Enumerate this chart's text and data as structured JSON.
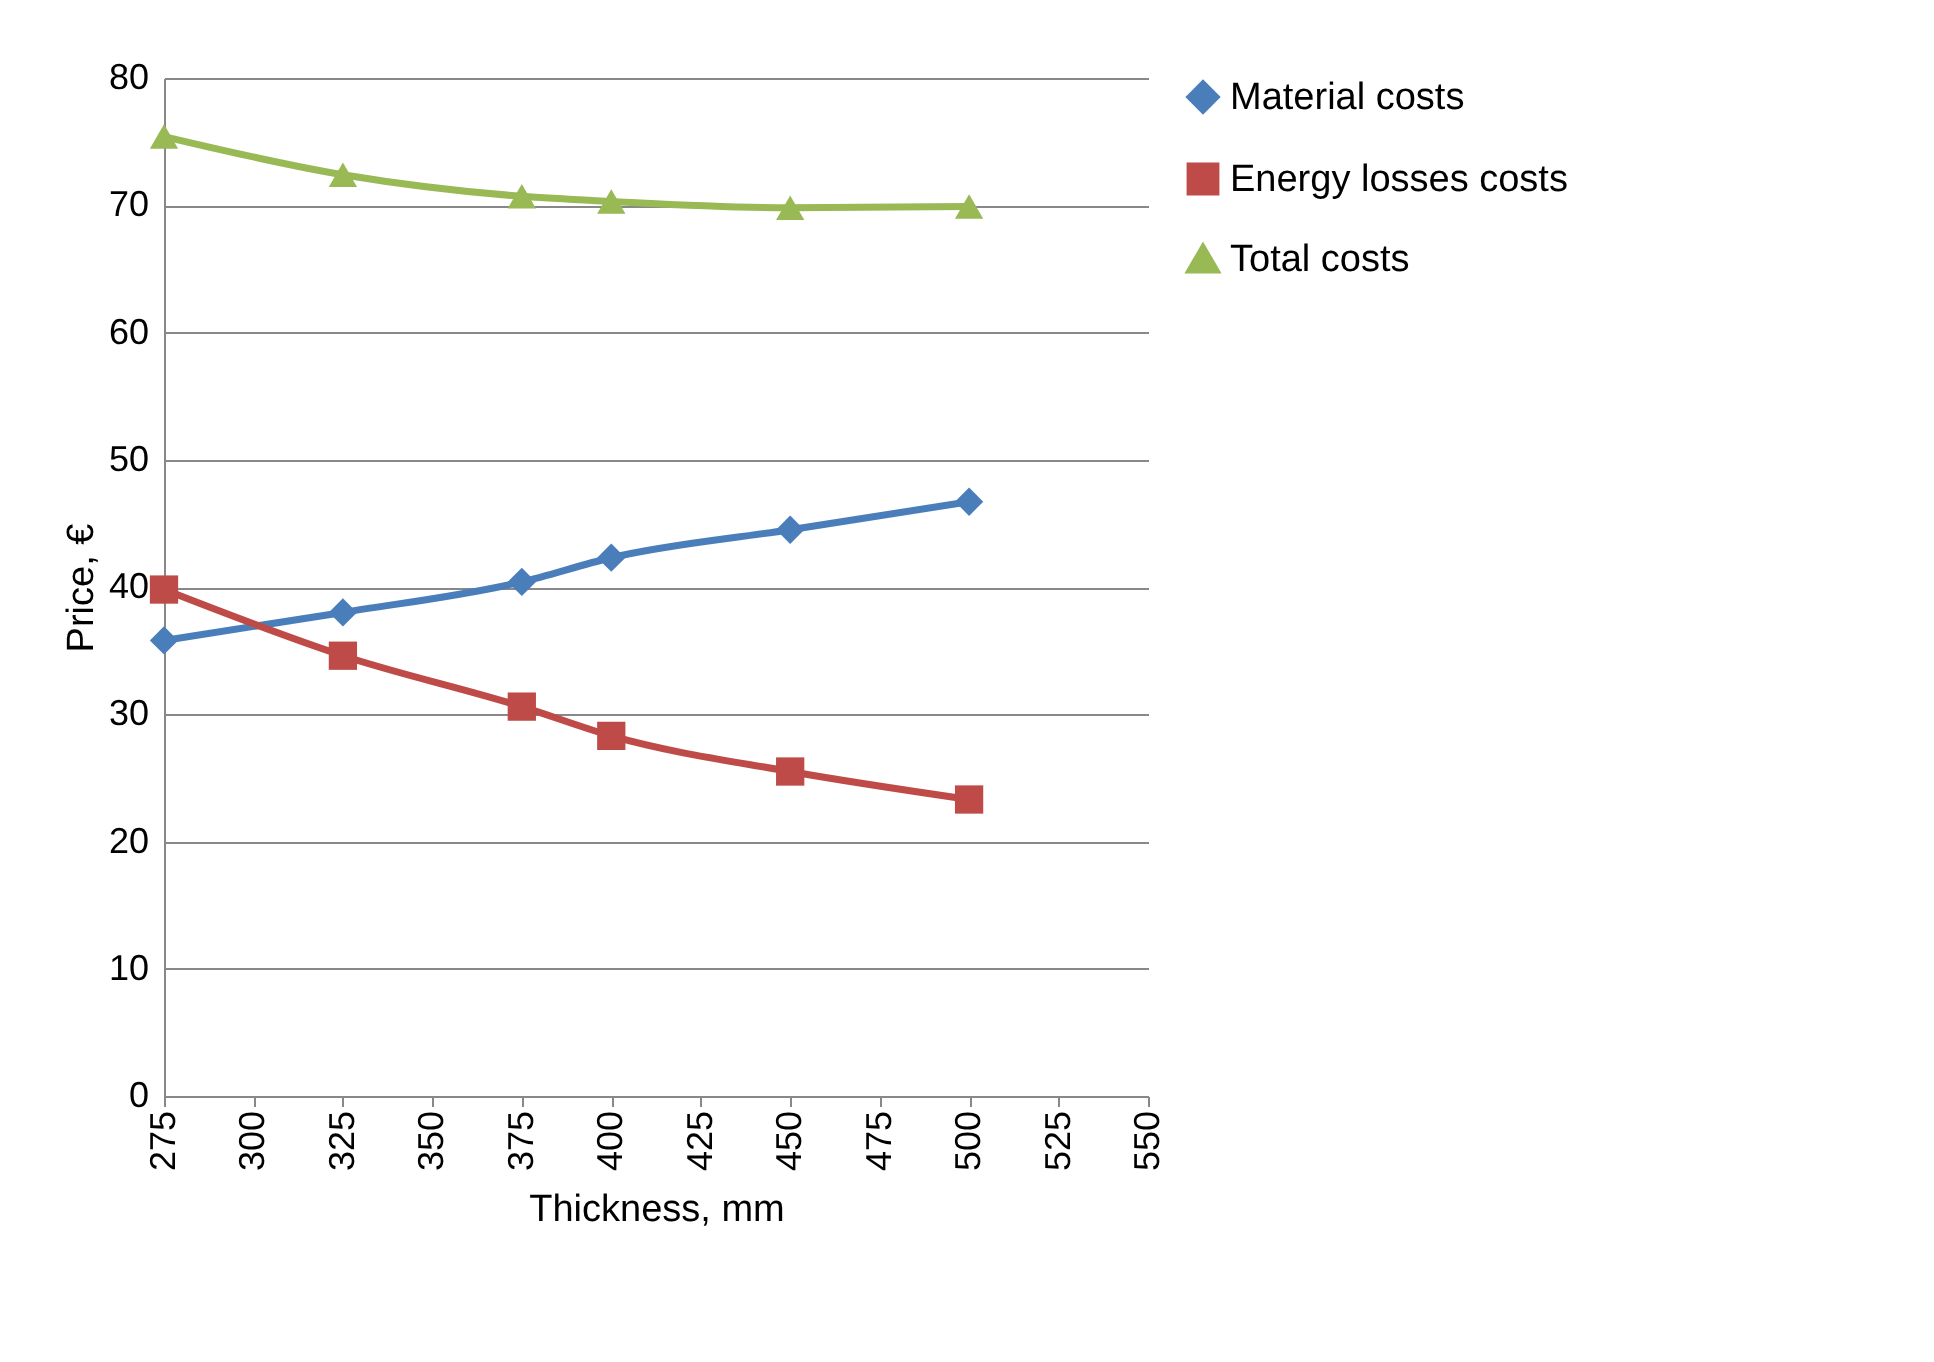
{
  "chart_data": {
    "type": "line",
    "xlabel": "Thickness, mm",
    "ylabel": "Price, €",
    "x": [
      275,
      325,
      375,
      400,
      450,
      500
    ],
    "series": [
      {
        "name": "Material costs",
        "color": "#4a7ebb",
        "marker": "diamond",
        "values": [
          35.8,
          38.0,
          40.4,
          42.3,
          44.5,
          46.7
        ]
      },
      {
        "name": "Energy losses costs",
        "color": "#be4b48",
        "marker": "square",
        "values": [
          39.8,
          34.6,
          30.6,
          28.3,
          25.5,
          23.3
        ]
      },
      {
        "name": "Total costs",
        "color": "#98b954",
        "marker": "triangle",
        "values": [
          75.4,
          72.4,
          70.7,
          70.3,
          69.8,
          69.9
        ]
      }
    ],
    "xlim": [
      275,
      550
    ],
    "xticks": [
      275,
      300,
      325,
      350,
      375,
      400,
      425,
      450,
      475,
      500,
      525,
      550
    ],
    "ylim": [
      0,
      80
    ],
    "yticks": [
      0,
      10,
      20,
      30,
      40,
      50,
      60,
      70,
      80
    ],
    "grid": "y",
    "legend": "right",
    "line_style": "solid"
  }
}
